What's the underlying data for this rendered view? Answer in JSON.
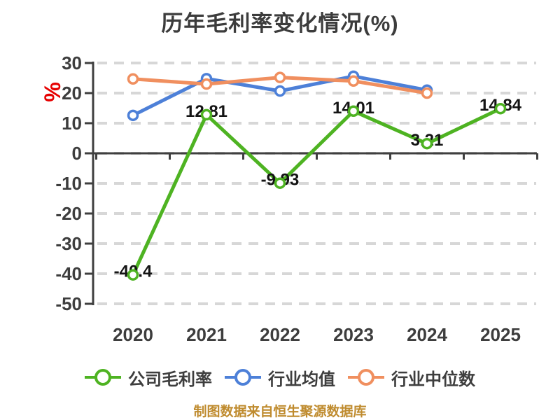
{
  "chart_data": {
    "type": "line",
    "title": "历年毛利率变化情况(%)",
    "ylabel": "%",
    "ylabel_color": "#e60000",
    "categories": [
      "2020",
      "2021",
      "2022",
      "2023",
      "2024",
      "2025"
    ],
    "series": [
      {
        "name": "公司毛利率",
        "color": "#4eb322",
        "values": [
          -40.4,
          12.81,
          -9.93,
          14.01,
          3.21,
          14.84
        ],
        "point_labels": [
          "-40.4",
          "12.81",
          "-9.93",
          "14.01",
          "3.21",
          "14.84"
        ]
      },
      {
        "name": "行业均值",
        "color": "#4d80d8",
        "values": [
          12.6,
          24.8,
          20.7,
          25.6,
          21.0,
          null
        ],
        "point_labels": null
      },
      {
        "name": "行业中位数",
        "color": "#f08f5f",
        "values": [
          24.7,
          23.0,
          25.2,
          24.0,
          20.0,
          null
        ],
        "point_labels": null
      }
    ],
    "ylim": [
      -50,
      30
    ],
    "ytick_interval": 10,
    "yticks": [
      "30",
      "20",
      "10",
      "0",
      "-10",
      "-20",
      "-30",
      "-40",
      "-50"
    ],
    "grid": "horizontal-dashed",
    "x_axis_at_value": 0,
    "legend_position": "bottom",
    "marker": "circle-white-fill"
  },
  "footer": {
    "text": "制图数据来自恒生聚源数据库",
    "color": "#bf8b2e"
  },
  "colors": {
    "grid": "#d7d7d7",
    "axis": "#3f3f3f",
    "tick_label": "#3d3d3d",
    "data_label": "#141414",
    "background": "#ffffff"
  }
}
